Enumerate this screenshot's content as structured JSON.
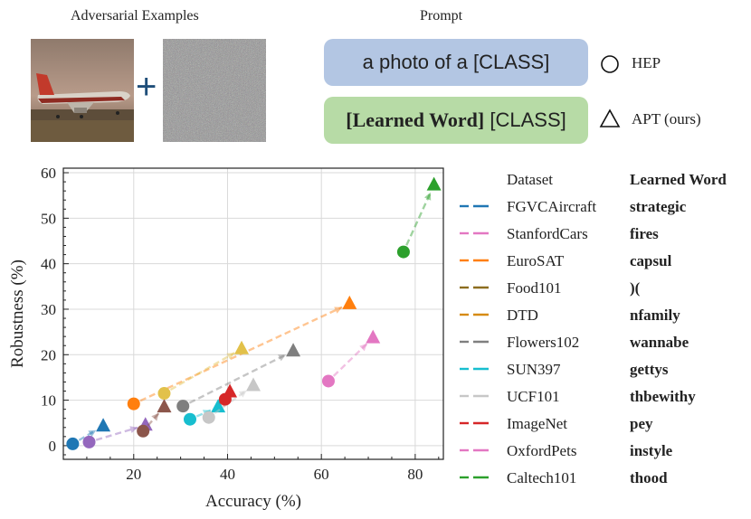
{
  "top": {
    "adv_title": "Adversarial Examples",
    "prompt_title": "Prompt",
    "hep_prompt": "a photo of a [CLASS]",
    "apt_prompt_learned": "[Learned Word]",
    "apt_prompt_class": " [CLASS]",
    "hep_label": "HEP",
    "apt_label": "APT (ours)",
    "plus": "+",
    "colors": {
      "hep_pill": "#b3c6e3",
      "apt_pill": "#b7dba6"
    }
  },
  "chart_data": {
    "type": "scatter",
    "xlabel": "Accuracy (%)",
    "ylabel": "Robustness (%)",
    "xlim": [
      5,
      86
    ],
    "ylim": [
      -3,
      61
    ],
    "xticks": [
      20,
      40,
      60,
      80
    ],
    "yticks": [
      0,
      10,
      20,
      30,
      40,
      50,
      60
    ],
    "grid": true,
    "legend_position": "right",
    "legend_header": {
      "dataset": "Dataset",
      "word": "Learned Word"
    },
    "series": [
      {
        "name": "FGVCAircraft",
        "word": "strategic",
        "color": "#1f77b4",
        "hep": [
          7,
          0.4
        ],
        "apt": [
          13.5,
          4.3
        ]
      },
      {
        "name": "StanfordCars",
        "word": "fires",
        "color": "#9467bd",
        "hep": [
          10.5,
          0.8
        ],
        "apt": [
          22.5,
          4.5
        ]
      },
      {
        "name": "EuroSAT",
        "word": "capsul",
        "color": "#ff7f0e",
        "hep": [
          20,
          9.2
        ],
        "apt": [
          66,
          31.2
        ]
      },
      {
        "name": "Food101",
        "word": ")(",
        "color": "#8c564b",
        "hep": [
          22,
          3.2
        ],
        "apt": [
          26.5,
          8.5
        ]
      },
      {
        "name": "DTD",
        "word": "nfamily",
        "color": "#e2c14a",
        "hep": [
          26.5,
          11.5
        ],
        "apt": [
          43,
          21.3
        ]
      },
      {
        "name": "Flowers102",
        "word": "wannabe",
        "color": "#7f7f7f",
        "hep": [
          30.5,
          8.7
        ],
        "apt": [
          54,
          20.8
        ]
      },
      {
        "name": "SUN397",
        "word": "gettys",
        "color": "#17becf",
        "hep": [
          32,
          5.8
        ],
        "apt": [
          38,
          8.5
        ]
      },
      {
        "name": "UCF101",
        "word": "thbewithy",
        "color": "#c7c7c7",
        "hep": [
          36,
          6.2
        ],
        "apt": [
          45.5,
          13.2
        ]
      },
      {
        "name": "ImageNet",
        "word": "pey",
        "color": "#d62728",
        "hep": [
          39.5,
          10.2
        ],
        "apt": [
          40.5,
          11.8
        ]
      },
      {
        "name": "OxfordPets",
        "word": "instyle",
        "color": "#e377c2",
        "hep": [
          61.5,
          14.2
        ],
        "apt": [
          71,
          23.7
        ]
      },
      {
        "name": "Caltech101",
        "word": "thood",
        "color": "#2ca02c",
        "hep": [
          77.5,
          42.6
        ],
        "apt": [
          84,
          57.3
        ]
      }
    ],
    "legend_line_colors": [
      "#1f77b4",
      "#e377c2",
      "#ff7f0e",
      "#8c6d1f",
      "#d68b14",
      "#7f7f7f",
      "#17becf",
      "#c7c7c7",
      "#d62728",
      "#e377c2",
      "#2ca02c"
    ]
  }
}
